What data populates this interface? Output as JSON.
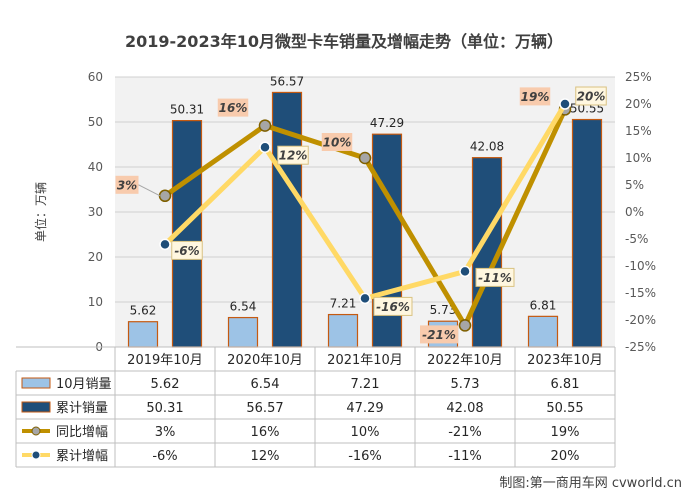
{
  "chart_data": {
    "type": "bar",
    "title": "2019-2023年10月微型卡车销量及增幅走势（单位：万辆）",
    "ylabel": "单位：万辆",
    "ylim": [
      0,
      60
    ],
    "y_ticks": [
      "0",
      "10",
      "20",
      "30",
      "40",
      "50",
      "60"
    ],
    "y2lim": [
      -25,
      25
    ],
    "y2_ticks": [
      "-25%",
      "-20%",
      "-15%",
      "-10%",
      "-5%",
      "0%",
      "5%",
      "10%",
      "15%",
      "20%",
      "25%"
    ],
    "categories": [
      "2019年10月",
      "2020年10月",
      "2021年10月",
      "2022年10月",
      "2023年10月"
    ],
    "series": [
      {
        "name": "10月销量",
        "kind": "bar",
        "axis": "left",
        "color": "#9dc3e6",
        "values": [
          5.62,
          6.54,
          7.21,
          5.73,
          6.81
        ],
        "labels": [
          "5.62",
          "6.54",
          "7.21",
          "5.73",
          "6.81"
        ]
      },
      {
        "name": "累计销量",
        "kind": "bar",
        "axis": "left",
        "color": "#1f4e79",
        "values": [
          50.31,
          56.57,
          47.29,
          42.08,
          50.55
        ],
        "labels": [
          "50.31",
          "56.57",
          "47.29",
          "42.08",
          "50.55"
        ]
      },
      {
        "name": "同比增幅",
        "kind": "line",
        "axis": "right",
        "color": "#bf9000",
        "values": [
          3,
          16,
          10,
          -21,
          19
        ],
        "labels": [
          "3%",
          "16%",
          "10%",
          "-21%",
          "19%"
        ]
      },
      {
        "name": "累计增幅",
        "kind": "line",
        "axis": "right",
        "color": "#ffd966",
        "values": [
          -6,
          12,
          -16,
          -11,
          20
        ],
        "labels": [
          "-6%",
          "12%",
          "-16%",
          "-11%",
          "20%"
        ]
      }
    ],
    "grid": true,
    "legend": "bottom data table",
    "source_note": "制图:第一商用车网 cvworld.cn"
  }
}
